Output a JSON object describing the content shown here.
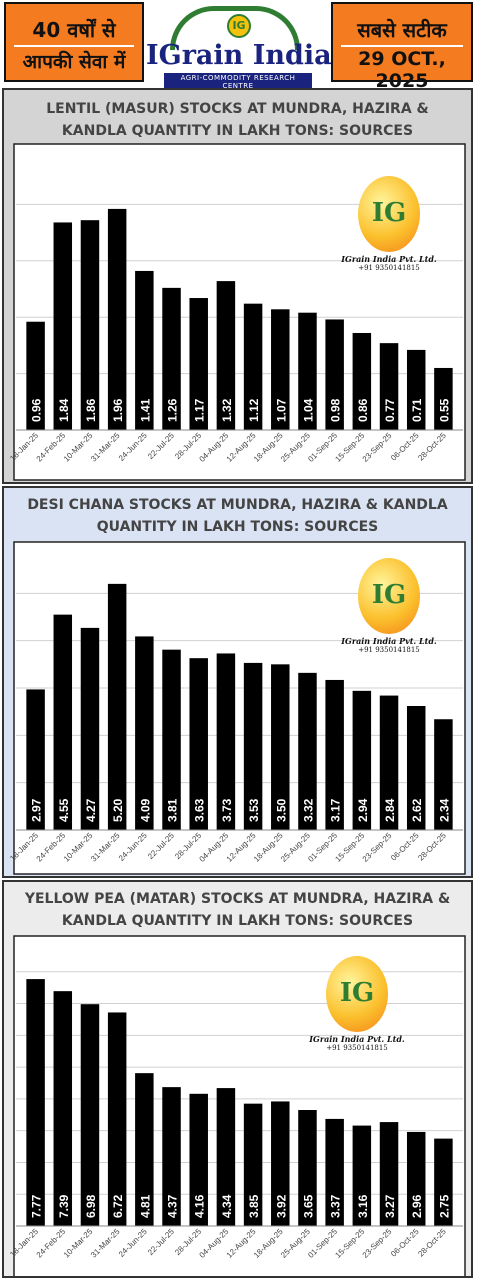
{
  "header": {
    "left_line1": "40 वर्षों से",
    "left_line2": "आपकी सेवा में",
    "brand": "IGrain India",
    "brand_coin": "IG",
    "tagline": "AGRI-COMMODITY RESEARCH CENTRE",
    "right_line1": "सबसे सटीक",
    "right_line2": "29 OCT., 2025",
    "colors": {
      "orange": "#f47b20",
      "navy": "#1a237e",
      "green": "#2e7d32"
    }
  },
  "watermark": {
    "letters": "IG",
    "name": "IGrain India Pvt. Ltd.",
    "phone": "+91 9350141815"
  },
  "chart_data": [
    {
      "type": "bar",
      "title_line1": "LENTIL (MASUR) STOCKS  AT MUNDRA, HAZIRA &",
      "title_line2": "KANDLA QUANTITY IN LAKH TONS: SOURCES",
      "categories": [
        "18-Jan-25",
        "24-Feb-25",
        "10-Mar-25",
        "31-Mar-25",
        "24-Jun-25",
        "22-Jul-25",
        "28-Jul-25",
        "04-Aug-25",
        "12-Aug-25",
        "18-Aug-25",
        "25-Aug-25",
        "01-Sep-25",
        "15-Sep-25",
        "23-Sep-25",
        "06-Oct-25",
        "28-Oct-25"
      ],
      "values": [
        0.96,
        1.84,
        1.86,
        1.96,
        1.41,
        1.26,
        1.17,
        1.32,
        1.12,
        1.07,
        1.04,
        0.98,
        0.86,
        0.77,
        0.71,
        0.55
      ],
      "labels": [
        "0.96",
        "1.84",
        "1.86",
        "1.96",
        "1.41",
        "1.26",
        "1.17",
        "1.32",
        "1.12",
        "1.07",
        "1.04",
        "0.98",
        "0.86",
        "0.77",
        "0.71",
        "0.55"
      ],
      "ylim": [
        0,
        2.5
      ],
      "gridlines": [
        0.5,
        1,
        1.5,
        2
      ],
      "panel_color": "#d4d4d4",
      "bar_color": "#000000"
    },
    {
      "type": "bar",
      "title_line1": "DESI CHANA STOCKS  AT MUNDRA, HAZIRA & KANDLA",
      "title_line2": "QUANTITY IN LAKH TONS: SOURCES",
      "categories": [
        "18-Jan-25",
        "24-Feb-25",
        "10-Mar-25",
        "31-Mar-25",
        "24-Jun-25",
        "22-Jul-25",
        "28-Jul-25",
        "04-Aug-25",
        "12-Aug-25",
        "18-Aug-25",
        "25-Aug-25",
        "01-Sep-25",
        "15-Sep-25",
        "23-Sep-25",
        "06-Oct-25",
        "28-Oct-25"
      ],
      "values": [
        2.97,
        4.55,
        4.27,
        5.2,
        4.09,
        3.81,
        3.63,
        3.73,
        3.53,
        3.5,
        3.32,
        3.17,
        2.94,
        2.84,
        2.62,
        2.34
      ],
      "labels": [
        "2.97",
        "4.55",
        "4.27",
        "5.20",
        "4.09",
        "3.81",
        "3.63",
        "3.73",
        "3.53",
        "3.50",
        "3.32",
        "3.17",
        "2.94",
        "2.84",
        "2.62",
        "2.34"
      ],
      "ylim": [
        0,
        6
      ],
      "gridlines": [
        1,
        2,
        3,
        4,
        5
      ],
      "panel_color": "#dae3f3",
      "bar_color": "#000000"
    },
    {
      "type": "bar",
      "title_line1": "YELLOW PEA (MATAR) STOCKS  AT MUNDRA, HAZIRA &",
      "title_line2": "KANDLA QUANTITY IN LAKH TONS: SOURCES",
      "categories": [
        "18-Jan-25",
        "24-Feb-25",
        "10-Mar-25",
        "31-Mar-25",
        "24-Jun-25",
        "22-Jul-25",
        "28-Jul-25",
        "04-Aug-25",
        "12-Aug-25",
        "18-Aug-25",
        "25-Aug-25",
        "01-Sep-25",
        "15-Sep-25",
        "23-Sep-25",
        "06-Oct-25",
        "28-Oct-25"
      ],
      "values": [
        7.77,
        7.39,
        6.98,
        6.72,
        4.81,
        4.37,
        4.16,
        4.34,
        3.85,
        3.92,
        3.65,
        3.37,
        3.16,
        3.27,
        2.96,
        2.75
      ],
      "labels": [
        "7.77",
        "7.39",
        "6.98",
        "6.72",
        "4.81",
        "4.37",
        "4.16",
        "4.34",
        "3.85",
        "3.92",
        "3.65",
        "3.37",
        "3.16",
        "3.27",
        "2.96",
        "2.75"
      ],
      "ylim": [
        0,
        9
      ],
      "gridlines": [
        1,
        2,
        3,
        4,
        5,
        6,
        7,
        8
      ],
      "panel_color": "#ececec",
      "bar_color": "#000000"
    }
  ]
}
